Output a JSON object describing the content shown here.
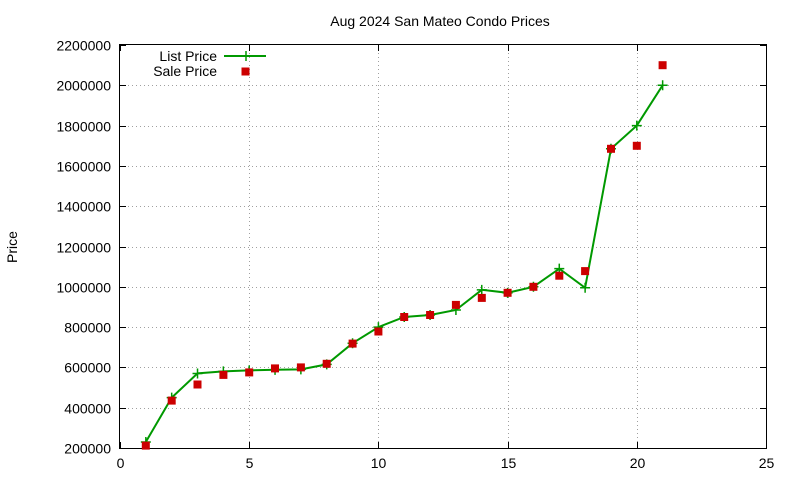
{
  "chart_data": {
    "type": "line",
    "title": "Aug 2024 San Mateo Condo Prices",
    "xlabel": "",
    "ylabel": "Price",
    "xlim": [
      0,
      25
    ],
    "ylim": [
      200000,
      2200000
    ],
    "x_ticks": [
      0,
      5,
      10,
      15,
      20,
      25
    ],
    "y_ticks": [
      200000,
      400000,
      600000,
      800000,
      1000000,
      1200000,
      1400000,
      1600000,
      1800000,
      2000000,
      2200000
    ],
    "x_tick_labels": [
      "0",
      "5",
      "10",
      "15",
      "20",
      "25"
    ],
    "y_tick_labels": [
      "200000",
      "400000",
      "600000",
      "800000",
      "1000000",
      "1200000",
      "1400000",
      "1600000",
      "1800000",
      "2000000",
      "2200000"
    ],
    "grid": true,
    "legend_position": "top-left",
    "series": [
      {
        "name": "List Price",
        "style": "line-with-plus-markers",
        "color": "#009900",
        "x": [
          1,
          2,
          3,
          4,
          5,
          6,
          7,
          8,
          9,
          10,
          11,
          12,
          13,
          14,
          15,
          16,
          17,
          18,
          19,
          20,
          21
        ],
        "y": [
          230000,
          450000,
          570000,
          580000,
          585000,
          588000,
          590000,
          615000,
          720000,
          800000,
          850000,
          860000,
          885000,
          985000,
          970000,
          1000000,
          1090000,
          995000,
          1685000,
          1800000,
          2000000
        ]
      },
      {
        "name": "Sale Price",
        "style": "square-markers",
        "color": "#cc0000",
        "x": [
          1,
          2,
          3,
          4,
          5,
          6,
          7,
          8,
          9,
          10,
          11,
          12,
          13,
          14,
          15,
          16,
          17,
          18,
          19,
          20,
          21
        ],
        "y": [
          212000,
          435000,
          515000,
          563000,
          575000,
          595000,
          600000,
          618000,
          718000,
          778000,
          850000,
          860000,
          910000,
          945000,
          970000,
          1000000,
          1055000,
          1078000,
          1685000,
          1700000,
          2100000
        ]
      }
    ]
  }
}
